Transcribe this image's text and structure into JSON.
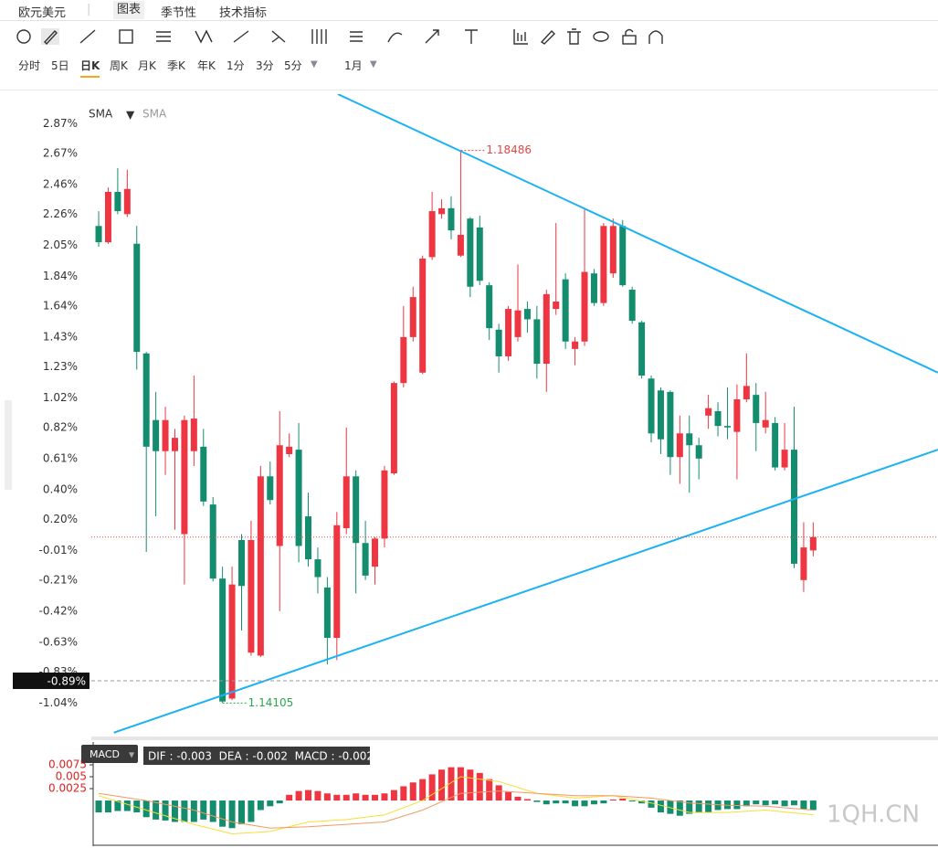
{
  "tabs": {
    "symbol": "欧元美元",
    "items": [
      "图表",
      "季节性",
      "技术指标"
    ]
  },
  "periods": [
    "分时",
    "5日",
    "日K",
    "周K",
    "月K",
    "季K",
    "年K",
    "1分",
    "3分",
    "5分"
  ],
  "interval": "1月",
  "watermark": "1QH.CN",
  "chart_data": [
    {
      "type": "candlestick",
      "legend": [
        "SMA",
        "SMA"
      ],
      "open": [
        2.18,
        2.07,
        2.41,
        2.26,
        2.06,
        1.32,
        0.87,
        0.66,
        0.66,
        0.1,
        0.66,
        0.69,
        0.3,
        -0.2,
        -1.01,
        0.06,
        -0.7,
        -0.72,
        0.49,
        0.02,
        0.64,
        0.67,
        0.22,
        -0.07,
        -0.26,
        -0.6,
        0.14,
        0.49,
        0.04,
        -0.12,
        0.07,
        0.51,
        1.12,
        1.43,
        1.19,
        1.97,
        2.26,
        2.3,
        1.98,
        2.23,
        2.17,
        1.78,
        1.48,
        1.3,
        1.43,
        1.62,
        1.55,
        1.25,
        1.62,
        1.82,
        1.35,
        1.4,
        1.86,
        1.66,
        1.86,
        2.18,
        1.75,
        1.53,
        1.15,
        1.07,
        1.06,
        0.62,
        0.78,
        0.7,
        0.9,
        0.93,
        0.83,
        0.79,
        1.01,
        1.04,
        0.82,
        0.85,
        0.55,
        0.67,
        -0.21,
        -0.01
      ],
      "high": [
        2.28,
        2.44,
        2.57,
        2.56,
        2.18,
        1.33,
        1.06,
        0.96,
        0.81,
        0.9,
        1.17,
        0.81,
        0.35,
        -0.12,
        -0.12,
        0.1,
        0.19,
        0.56,
        0.59,
        0.93,
        0.78,
        0.85,
        0.38,
        0.01,
        -0.19,
        0.25,
        0.82,
        0.53,
        0.19,
        0.08,
        0.56,
        1.13,
        1.64,
        1.77,
        1.98,
        2.41,
        2.36,
        2.38,
        2.69,
        2.24,
        2.25,
        1.8,
        1.52,
        1.64,
        1.92,
        1.67,
        1.64,
        1.75,
        2.2,
        1.86,
        1.43,
        2.29,
        1.89,
        2.2,
        2.23,
        2.22,
        1.77,
        1.54,
        1.17,
        1.09,
        1.07,
        0.9,
        0.9,
        0.75,
        1.04,
        0.99,
        1.09,
        1.11,
        1.32,
        1.12,
        1.06,
        0.89,
        0.85,
        0.96,
        0.18,
        0.18
      ],
      "low": [
        2.04,
        2.06,
        2.26,
        2.24,
        1.21,
        -0.02,
        0.22,
        0.5,
        0.13,
        -0.24,
        0.56,
        0.29,
        -0.22,
        -1.04,
        -1.02,
        -0.55,
        -0.72,
        -0.73,
        0.3,
        -0.42,
        0.62,
        -0.09,
        -0.12,
        -0.3,
        -0.78,
        -0.75,
        0.1,
        -0.3,
        -0.21,
        -0.24,
        0.01,
        0.5,
        1.09,
        1.4,
        1.18,
        1.95,
        2.23,
        2.09,
        1.97,
        1.7,
        1.78,
        1.41,
        1.19,
        1.27,
        1.4,
        1.46,
        1.15,
        1.06,
        1.58,
        1.35,
        1.24,
        1.37,
        1.64,
        1.64,
        1.83,
        1.77,
        1.52,
        1.15,
        0.72,
        0.64,
        0.5,
        0.44,
        0.38,
        0.47,
        0.81,
        0.76,
        0.74,
        0.47,
        0.99,
        0.66,
        0.78,
        0.53,
        0.53,
        -0.13,
        -0.29,
        -0.05
      ],
      "close": [
        2.07,
        2.41,
        2.28,
        2.43,
        1.33,
        0.69,
        0.66,
        0.87,
        0.75,
        0.87,
        0.88,
        0.32,
        -0.2,
        -1.03,
        -0.24,
        -0.25,
        0.06,
        0.49,
        0.33,
        0.7,
        0.69,
        0.02,
        -0.07,
        -0.19,
        -0.6,
        0.16,
        0.49,
        0.04,
        -0.18,
        0.07,
        0.53,
        1.12,
        1.43,
        1.7,
        1.96,
        2.28,
        2.3,
        2.15,
        2.12,
        1.77,
        1.81,
        1.49,
        1.3,
        1.62,
        1.61,
        1.55,
        1.25,
        1.72,
        1.67,
        1.4,
        1.4,
        1.87,
        1.66,
        2.18,
        2.18,
        1.78,
        1.54,
        1.17,
        0.78,
        0.74,
        0.62,
        0.78,
        0.7,
        0.61,
        0.95,
        0.83,
        0.82,
        1.01,
        1.1,
        0.85,
        0.87,
        0.55,
        0.67,
        -0.1,
        0.01,
        0.08
      ],
      "up_color": "#ee3542",
      "down_color": "#138d6e",
      "xlim": [
        -0.77,
        88.1
      ],
      "ylim": [
        -1.26,
        3.07
      ],
      "yticks": [
        {
          "value": 2.87,
          "label": "2.87%"
        },
        {
          "value": 2.67,
          "label": "2.67%"
        },
        {
          "value": 2.46,
          "label": "2.46%"
        },
        {
          "value": 2.26,
          "label": "2.26%"
        },
        {
          "value": 2.05,
          "label": "2.05%"
        },
        {
          "value": 1.84,
          "label": "1.84%"
        },
        {
          "value": 1.64,
          "label": "1.64%"
        },
        {
          "value": 1.43,
          "label": "1.43%"
        },
        {
          "value": 1.23,
          "label": "1.23%"
        },
        {
          "value": 1.02,
          "label": "1.02%"
        },
        {
          "value": 0.82,
          "label": "0.82%"
        },
        {
          "value": 0.61,
          "label": "0.61%"
        },
        {
          "value": 0.4,
          "label": "0.40%"
        },
        {
          "value": 0.2,
          "label": "0.20%"
        },
        {
          "value": -0.01,
          "label": "-0.01%"
        },
        {
          "value": -0.21,
          "label": "-0.21%"
        },
        {
          "value": -0.42,
          "label": "-0.42%"
        },
        {
          "value": -0.63,
          "label": "-0.63%"
        },
        {
          "value": -0.83,
          "label": "-0.83%"
        },
        {
          "value": -1.04,
          "label": "-1.04%"
        }
      ],
      "high_label": "1.18486",
      "low_label": "1.14105",
      "crosshair": {
        "value": -0.89,
        "label": "-0.89%"
      },
      "trend_lines": [
        {
          "x": [
            25.1,
            88.1
          ],
          "y": [
            3.07,
            1.19
          ],
          "color": "#1ab2f2"
        },
        {
          "x": [
            1.6,
            88.1
          ],
          "y": [
            -1.24,
            0.67
          ],
          "color": "#1ab2f2"
        }
      ]
    },
    {
      "type": "macd",
      "label": "MACD",
      "readout": "DIF : -0.003  DEA : -0.002  MACD : -0.002",
      "values": [
        -0.0025,
        -0.0025,
        -0.0022,
        -0.0022,
        -0.0025,
        -0.0035,
        -0.004,
        -0.0042,
        -0.0045,
        -0.0045,
        -0.0045,
        -0.004,
        -0.0045,
        -0.0055,
        -0.0058,
        -0.005,
        -0.0045,
        -0.002,
        -0.0012,
        -0.0006,
        0.0012,
        0.002,
        0.0022,
        0.002,
        0.0015,
        0.0012,
        0.0012,
        0.0015,
        0.0012,
        0.0012,
        0.0015,
        0.0022,
        0.003,
        0.0038,
        0.0045,
        0.0055,
        0.0065,
        0.007,
        0.007,
        0.0065,
        0.0058,
        0.0045,
        0.0032,
        0.0018,
        0.0008,
        0.0003,
        -0.0003,
        -0.0008,
        -0.0006,
        -0.0006,
        -0.0012,
        -0.0012,
        -0.0008,
        -0.0006,
        0.0002,
        0.0004,
        -0.0002,
        -0.0006,
        -0.0015,
        -0.0025,
        -0.0028,
        -0.0032,
        -0.0028,
        -0.0025,
        -0.0025,
        -0.002,
        -0.0018,
        -0.0018,
        -0.0012,
        -0.0008,
        -0.001,
        -0.0008,
        -0.0012,
        -0.001,
        -0.0018,
        -0.002
      ],
      "up_color": "#ee3542",
      "down_color": "#138d6e",
      "ylim": [
        -0.0094,
        0.0123
      ],
      "yticks": [
        0.0075,
        0.005,
        0.0025
      ],
      "series": [
        {
          "color": "#f2e03a",
          "x": [
            0,
            5,
            10,
            14,
            18,
            22,
            26,
            30,
            34,
            38,
            42,
            46,
            50,
            54,
            58,
            62,
            66,
            70,
            75
          ],
          "values": [
            0.001,
            -0.002,
            -0.005,
            -0.007,
            -0.0065,
            -0.0045,
            -0.004,
            -0.003,
            0.0,
            0.005,
            0.004,
            0.0015,
            0.0005,
            0.001,
            -0.0005,
            -0.0025,
            -0.0025,
            -0.002,
            -0.003
          ]
        },
        {
          "color": "#f09a62",
          "x": [
            0,
            5,
            10,
            14,
            18,
            22,
            26,
            30,
            34,
            38,
            42,
            46,
            50,
            54,
            58,
            62,
            66,
            70,
            75
          ],
          "values": [
            0.0015,
            0.0,
            -0.002,
            -0.0045,
            -0.0058,
            -0.0055,
            -0.005,
            -0.0045,
            -0.002,
            0.0015,
            0.002,
            0.0015,
            0.001,
            0.001,
            0.0005,
            -0.0005,
            -0.001,
            -0.0012,
            -0.002
          ]
        }
      ]
    }
  ]
}
